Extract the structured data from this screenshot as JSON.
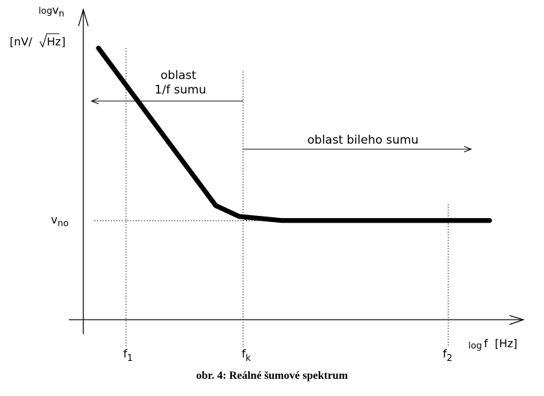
{
  "figure": {
    "caption": "obr. 4: Reálné šumové spektrum"
  },
  "chart_data": {
    "type": "line",
    "x_axis": {
      "label_prefix": "log",
      "label_var": "f",
      "label_unit": "[Hz]"
    },
    "y_axis": {
      "label_prefix": "log",
      "label_var": "v",
      "label_sub": "n",
      "label_unit_open": "[nV/",
      "label_unit_root": "Hz",
      "label_unit_close": "]"
    },
    "markers": [
      {
        "var": "f",
        "sub": "1"
      },
      {
        "var": "f",
        "sub": "k"
      },
      {
        "var": "f",
        "sub": "2"
      }
    ],
    "level": {
      "var": "v",
      "sub": "no"
    },
    "regions": [
      {
        "line1": "oblast",
        "line2": "1/f sumu"
      },
      {
        "line1": "oblast bileho sumu"
      }
    ],
    "series": [
      {
        "values_description_free": true,
        "points": [
          [
            0.0,
            1.0
          ],
          [
            0.3,
            0.42
          ],
          [
            0.36,
            0.38
          ],
          [
            0.47,
            0.365
          ],
          [
            1.0,
            0.365
          ]
        ]
      }
    ],
    "asymptotes": [
      {
        "from": [
          0.3,
          0.42
        ],
        "to": [
          0.38,
          0.365
        ]
      }
    ],
    "grid": false,
    "legend": "none"
  }
}
